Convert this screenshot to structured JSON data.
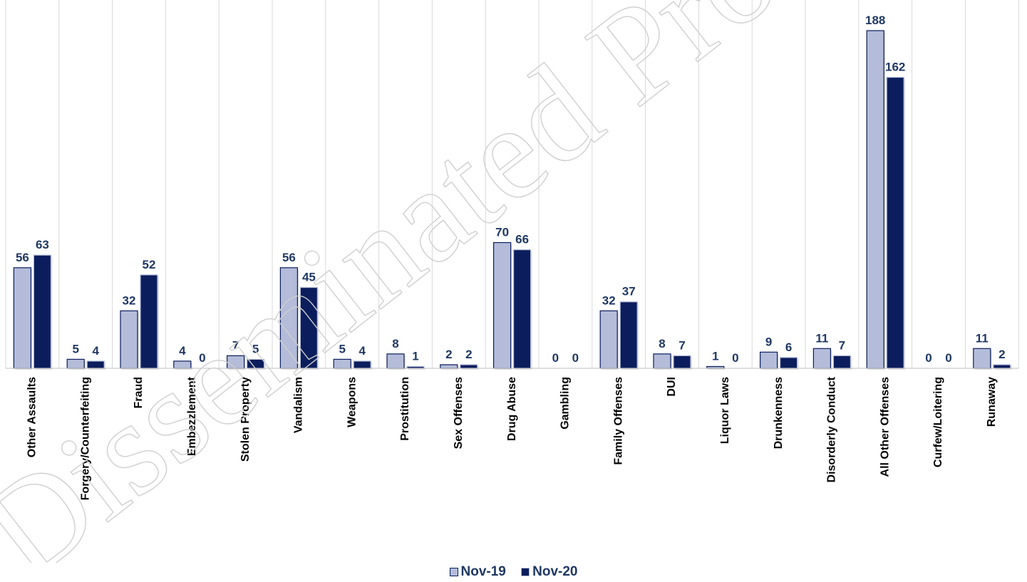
{
  "chart_data": {
    "type": "bar",
    "categories": [
      "Other Assaults",
      "Forgery/Counterfeiting",
      "Fraud",
      "Embezzlement",
      "Stolen Property",
      "Vandalism",
      "Weapons",
      "Prostitution",
      "Sex Offenses",
      "Drug Abuse",
      "Gambling",
      "Family Offenses",
      "DUI",
      "Liquor Laws",
      "Drunkenness",
      "Disorderly Conduct",
      "All Other Offenses",
      "Curfew/Loitering",
      "Runaway"
    ],
    "series": [
      {
        "name": "Nov-19",
        "color": "#b4bcd9",
        "values": [
          56,
          5,
          32,
          4,
          7,
          56,
          5,
          8,
          2,
          70,
          0,
          32,
          8,
          1,
          9,
          11,
          188,
          0,
          11
        ]
      },
      {
        "name": "Nov-20",
        "color": "#0b1d5c",
        "values": [
          63,
          4,
          52,
          0,
          5,
          45,
          4,
          1,
          2,
          66,
          0,
          37,
          7,
          0,
          6,
          7,
          162,
          0,
          2
        ]
      }
    ],
    "ylim": [
      0,
      188
    ],
    "grid": "vertical",
    "legend": "bottom-center",
    "watermark": "Disseminated Product"
  }
}
